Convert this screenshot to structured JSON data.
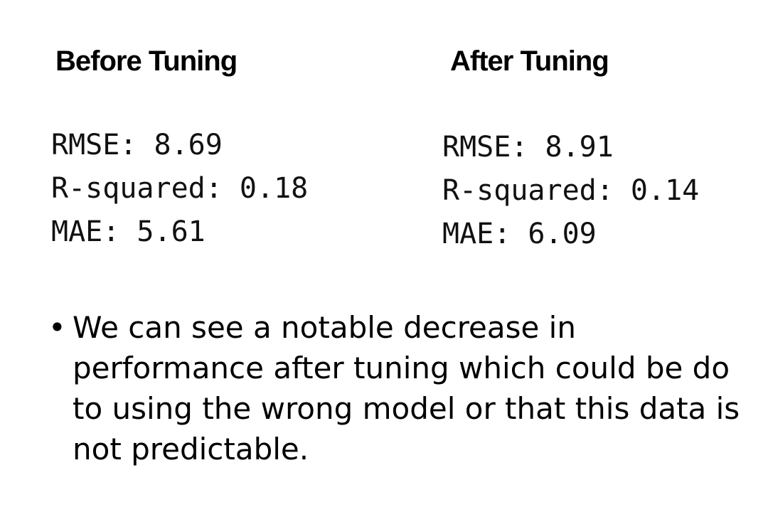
{
  "before": {
    "heading": "Before Tuning",
    "metrics": [
      "RMSE: 8.69",
      "R-squared: 0.18",
      "MAE: 5.61"
    ]
  },
  "after": {
    "heading": "After Tuning",
    "metrics": [
      "RMSE: 8.91",
      "R-squared: 0.14",
      "MAE: 6.09"
    ]
  },
  "bullet": {
    "marker": "•",
    "text": "We can see a notable decrease in performance after tuning which could be do to using the wrong model or that this data is not predictable."
  }
}
